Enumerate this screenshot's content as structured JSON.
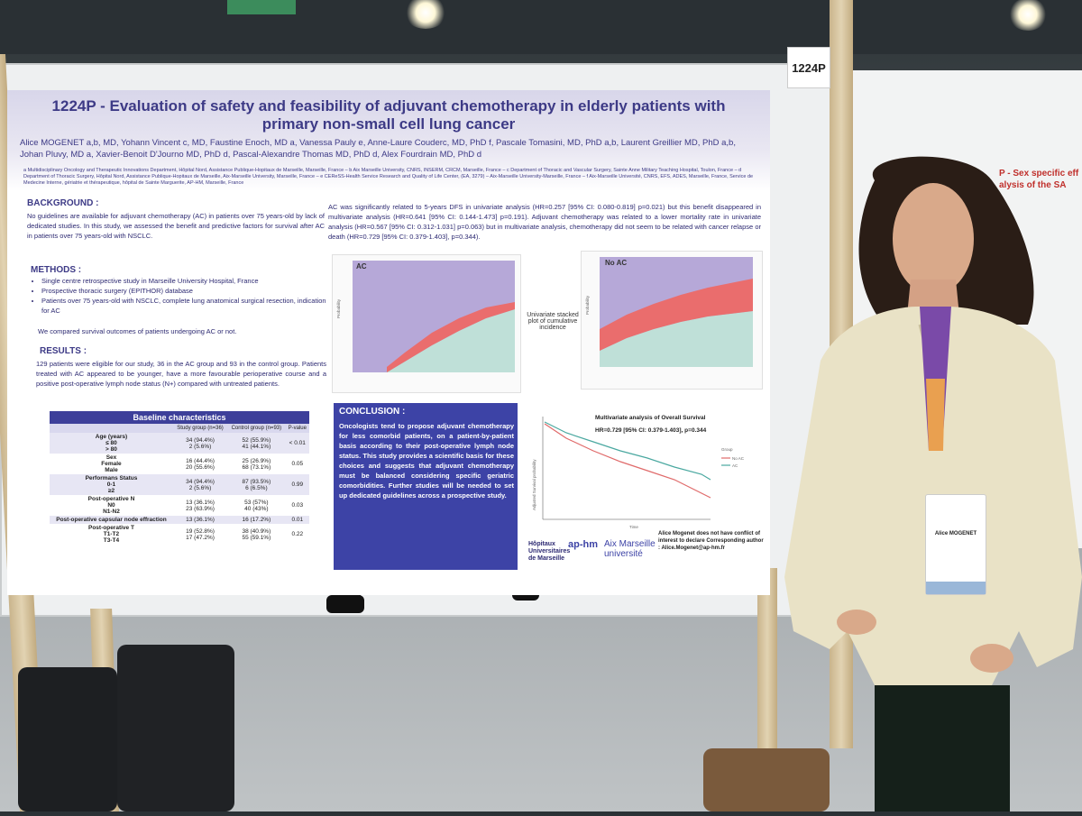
{
  "booth": {
    "number": "1224P"
  },
  "poster": {
    "title": "1224P - Evaluation of safety and feasibility of adjuvant chemotherapy in elderly patients with primary non-small cell lung cancer",
    "authors": "Alice MOGENET a,b, MD, Yohann Vincent c, MD, Faustine Enoch, MD a, Vanessa Pauly e, Anne-Laure Couderc, MD, PhD f, Pascale Tomasini, MD, PhD a,b, Laurent Greillier MD, PhD a,b, Johan Pluvy, MD a, Xavier-Benoit D'Journo MD, PhD d, Pascal-Alexandre Thomas MD, PhD d, Alex Fourdrain MD, PhD d",
    "affiliations": "a Multidisciplinary Oncology and Therapeutic Innovations Department, Hôpital Nord, Assistance Publique-Hopitaux de Marseille, Marseille, France – b Aix Marseille University, CNRS, INSERM, CRCM, Marseille, France – c Department of Thoracic and Vascular Surgery, Sainte Anne Military Teaching Hospital, Toulon, France – d Department of Thoracic Surgery, Hôpital Nord, Assistance Publique-Hopitaux de Marseille, Aix-Marseille University, Marseille, France – e CEReSS-Health Service Research and Quality of Life Center, (EA, 3279) – Aix-Marseille University-Marseille, France – f Aix-Marseille Université, CNRS, EFS, ADES, Marseille, France, Service de Medecine Interne, gériatrie et thérapeutique, hôpital de Sainte Marguerite, AP-HM, Marseille, France",
    "background": {
      "heading": "BACKGROUND :",
      "text": "No guidelines are available for adjuvant chemotherapy (AC) in patients over 75 years-old by lack of dedicated studies. In this study, we assessed the benefit and predictive factors for survival after AC in patients over 75 years-old with NSCLC."
    },
    "methods": {
      "heading": "METHODS :",
      "items": [
        "Single centre retrospective study in Marseille University Hospital, France",
        "Prospective thoracic surgery (EPITHOR) database",
        "Patients over 75 years-old with NSCLC, complete lung anatomical surgical resection, indication for AC"
      ],
      "closing": "We compared survival outcomes of patients undergoing AC or not."
    },
    "results": {
      "heading": "RESULTS :",
      "text": "129 patients were eligible for our study, 36 in the AC group and 93 in the control group. Patients treated with AC appeared to be younger, have a more favourable perioperative course and a positive post-operative lymph node status (N+) compared with untreated patients."
    },
    "right_text": "AC was significantly related to 5-years DFS in univariate analysis (HR=0.257 [95% CI: 0.080-0.819] p=0.021) but this benefit disappeared in multivariate analysis (HR=0.641 [95% CI: 0.144-1.473] p=0.191). Adjuvant chemotherapy was related to a lower mortality rate in univariate analysis (HR=0.567 [95% CI: 0.312-1.031] p=0.063) but in multivariate analysis, chemotherapy did not seem to be related with cancer relapse or death (HR=0.729 [95% CI: 0.379-1.403], p=0.344).",
    "table": {
      "caption": "Baseline characteristics",
      "col_headers": [
        "",
        "Study group (n=36)",
        "Control group (n=93)",
        "P-value"
      ],
      "rows": [
        {
          "label": "Age (years)",
          "sub": [
            "≤ 80",
            "> 80"
          ],
          "study": [
            "34 (94.4%)",
            "2 (5.6%)"
          ],
          "control": [
            "52 (55.9%)",
            "41 (44.1%)"
          ],
          "p": "< 0.01"
        },
        {
          "label": "Sex",
          "sub": [
            "Female",
            "Male"
          ],
          "study": [
            "16 (44.4%)",
            "20 (55.6%)"
          ],
          "control": [
            "25 (26.9%)",
            "68 (73.1%)"
          ],
          "p": "0.05"
        },
        {
          "label": "Performans Status",
          "sub": [
            "0-1",
            "≥2"
          ],
          "study": [
            "34 (94.4%)",
            "2 (5.6%)"
          ],
          "control": [
            "87 (93.5%)",
            "6 (6.5%)"
          ],
          "p": "0.99"
        },
        {
          "label": "Post-operative N",
          "sub": [
            "N0",
            "N1-N2"
          ],
          "study": [
            "13 (36.1%)",
            "23 (63.9%)"
          ],
          "control": [
            "53 (57%)",
            "40 (43%)"
          ],
          "p": "0.03"
        },
        {
          "label": "Post-operative capsular node effraction",
          "sub": [],
          "study": [
            "13 (36.1%)"
          ],
          "control": [
            "16 (17.2%)"
          ],
          "p": "0.01"
        },
        {
          "label": "Post-operative T",
          "sub": [
            "T1-T2",
            "T3-T4"
          ],
          "study": [
            "19 (52.8%)",
            "17 (47.2%)"
          ],
          "control": [
            "38 (40.9%)",
            "55 (59.1%)"
          ],
          "p": "0.22"
        }
      ]
    },
    "conclusion": {
      "heading": "CONCLUSION :",
      "text": "Oncologists tend to propose adjuvant chemotherapy for less comorbid patients, on a patient-by-patient basis according to their post-operative lymph node status. This study provides a scientific basis for these choices and suggests that adjuvant chemotherapy must be balanced considering specific geriatric comorbidities. Further studies will be needed to set up dedicated guidelines across a prospective study."
    },
    "chart_ac": {
      "label": "AC",
      "ylabel": "Probability"
    },
    "chart_noac": {
      "label": "No AC",
      "ylabel": "Probability"
    },
    "chart_middle_caption": "Univariate stacked plot of cumulative incidence",
    "km": {
      "title": "Multivariate analysis of Overall Survival",
      "hr": "HR=0.729 [95% CI: 0.379-1.403], p=0.344",
      "ylabel": "Adjusted Survival probability",
      "xlabel": "Time",
      "legend_title": "Group",
      "legend": [
        "No AC",
        "AC"
      ],
      "ac_color": "#4aa8a0",
      "noac_color": "#e06a6a"
    },
    "logos": {
      "hopitaux": "Hôpitaux Universitaires de Marseille",
      "aphm": "ap-hm",
      "amu": "Aix Marseille université"
    },
    "contact": "Alice Mogenet does not have conflict of interest to declare Corresponding author : Alice.Mogenet@ap-hm.fr"
  },
  "right_poster": {
    "title_fragment": "P - Sex specific eff alysis of the SA"
  },
  "badge": {
    "name": "Alice MOGENET"
  },
  "colors": {
    "poster_accent": "#3d43a6",
    "header_tint": "#d8d6ea",
    "ac_band": "#ea6d6d",
    "ac_base": "#bfe0d8",
    "chart_bg": "#b6a8d8"
  }
}
